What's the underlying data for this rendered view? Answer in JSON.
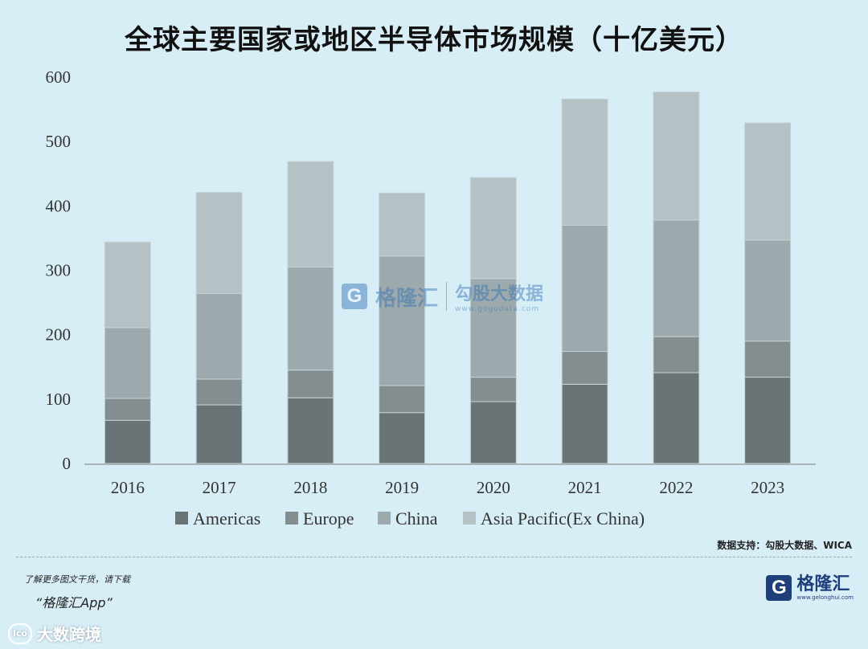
{
  "page": {
    "title": "全球主要国家或地区半导体市场规模（十亿美元）",
    "source": "数据支持：勾股大数据、WICA",
    "promo_line1": "了解更多图文干货，请下载",
    "promo_line2": "“格隆汇App”",
    "brand_name": "格隆汇",
    "brand_sub": "www.gelonghui.com",
    "bottom_mark": "大数跨境",
    "watermark_name": "格隆汇",
    "watermark_cn": "勾股大数据",
    "watermark_url": "www.gogudata.com"
  },
  "colors": {
    "Americas": "#6a7476",
    "Europe": "#848e91",
    "China": "#9caaad",
    "Asia Pacific(Ex China)": "#b4c2c5",
    "background": "#d8eef7"
  },
  "chart_data": {
    "type": "bar",
    "stacked": true,
    "title": "全球主要国家或地区半导体市场规模（十亿美元）",
    "categories": [
      "2016",
      "2017",
      "2018",
      "2019",
      "2020",
      "2021",
      "2022",
      "2023"
    ],
    "series": [
      {
        "name": "Americas",
        "values": [
          67,
          91,
          102,
          79,
          96,
          123,
          141,
          134
        ]
      },
      {
        "name": "Europe",
        "values": [
          34,
          40,
          43,
          42,
          38,
          51,
          56,
          56
        ]
      },
      {
        "name": "China",
        "values": [
          110,
          133,
          160,
          201,
          153,
          196,
          181,
          157
        ]
      },
      {
        "name": "Asia Pacific(Ex China)",
        "values": [
          133,
          157,
          164,
          98,
          157,
          196,
          199,
          182
        ]
      }
    ],
    "ylim": [
      0,
      600
    ],
    "yticks": [
      0,
      100,
      200,
      300,
      400,
      500,
      600
    ],
    "legend_position": "bottom",
    "grid": false
  }
}
